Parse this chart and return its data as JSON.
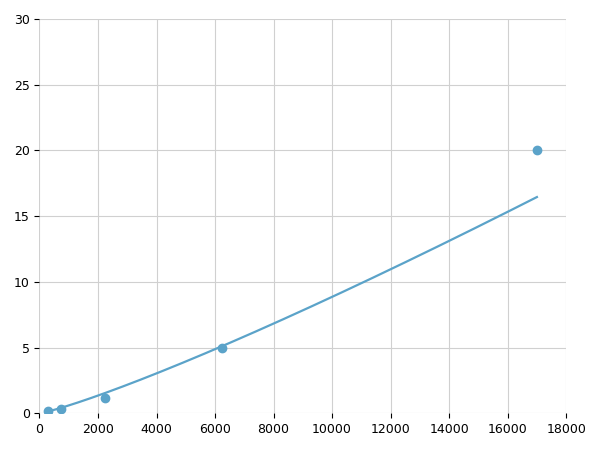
{
  "x_data": [
    300,
    750,
    2250,
    6250,
    17000
  ],
  "y_data": [
    0.2,
    0.35,
    1.2,
    5.0,
    20.0
  ],
  "line_color": "#5ba3c9",
  "marker_color": "#5ba3c9",
  "marker_size": 6,
  "linewidth": 1.6,
  "xlim": [
    0,
    18000
  ],
  "ylim": [
    0,
    30
  ],
  "xticks": [
    0,
    2000,
    4000,
    6000,
    8000,
    10000,
    12000,
    14000,
    16000,
    18000
  ],
  "yticks": [
    0,
    5,
    10,
    15,
    20,
    25,
    30
  ],
  "grid_color": "#d0d0d0",
  "background_color": "#ffffff",
  "figsize": [
    6.0,
    4.5
  ],
  "dpi": 100
}
